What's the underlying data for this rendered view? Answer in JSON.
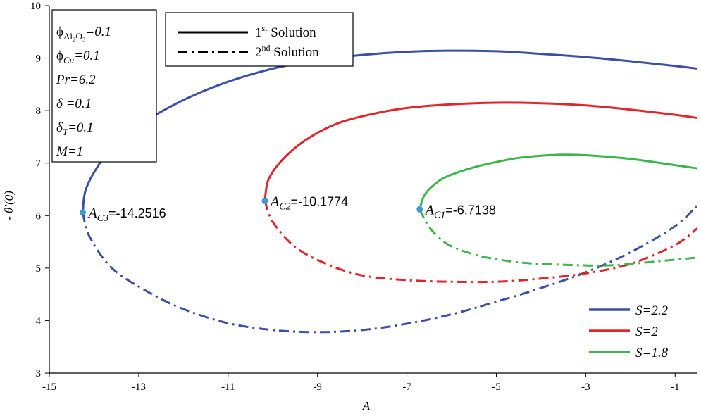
{
  "chart_data": {
    "type": "line",
    "xlabel": "A",
    "ylabel": "- θ′(0)",
    "xlim": [
      -15,
      -0.5
    ],
    "ylim": [
      3,
      10
    ],
    "xticks": [
      -15,
      -13,
      -11,
      -9,
      -7,
      -5,
      -3,
      -1
    ],
    "yticks": [
      3,
      4,
      5,
      6,
      7,
      8,
      9,
      10
    ],
    "grid": false,
    "params": [
      {
        "sym": "ϕ",
        "sub": "Al₂O₃",
        "val": "=0.1"
      },
      {
        "sym": "ϕ",
        "sub": "Cu",
        "val": "=0.1"
      },
      {
        "sym": "Pr",
        "sub": "",
        "val": "=6.2"
      },
      {
        "sym": "δ",
        "sub": "",
        "val": " =0.1"
      },
      {
        "sym": "δ",
        "sub": "T",
        "val": "=0.1"
      },
      {
        "sym": "M",
        "sub": "",
        "val": "=1"
      }
    ],
    "style_legend": {
      "first": {
        "base": "1",
        "sup": "st",
        "text": " Solution"
      },
      "second": {
        "base": "2",
        "sup": "nd",
        "text": " Solution"
      }
    },
    "series": [
      {
        "name": "S=2.2",
        "color": "#3b4fa8",
        "critical": {
          "label_main": "A",
          "label_sub": "C3",
          "label_value": "=-14.2516",
          "x": -14.2516,
          "y": 6.06
        },
        "first": [
          [
            -14.2516,
            6.06
          ],
          [
            -14.2,
            6.45
          ],
          [
            -14.0,
            6.82
          ],
          [
            -13.6,
            7.3
          ],
          [
            -13.0,
            7.72
          ],
          [
            -12.0,
            8.2
          ],
          [
            -11.0,
            8.55
          ],
          [
            -10.0,
            8.8
          ],
          [
            -9.0,
            8.96
          ],
          [
            -8.0,
            9.06
          ],
          [
            -7.0,
            9.12
          ],
          [
            -6.0,
            9.14
          ],
          [
            -5.0,
            9.13
          ],
          [
            -4.0,
            9.08
          ],
          [
            -3.0,
            9.02
          ],
          [
            -2.0,
            8.94
          ],
          [
            -1.0,
            8.85
          ],
          [
            -0.5,
            8.8
          ]
        ],
        "second": [
          [
            -14.2516,
            6.06
          ],
          [
            -14.1,
            5.6
          ],
          [
            -13.6,
            5.0
          ],
          [
            -12.8,
            4.55
          ],
          [
            -12.0,
            4.22
          ],
          [
            -11.0,
            3.95
          ],
          [
            -10.0,
            3.82
          ],
          [
            -9.0,
            3.78
          ],
          [
            -8.0,
            3.82
          ],
          [
            -7.0,
            3.94
          ],
          [
            -6.0,
            4.12
          ],
          [
            -5.0,
            4.36
          ],
          [
            -4.0,
            4.62
          ],
          [
            -3.0,
            4.92
          ],
          [
            -2.0,
            5.3
          ],
          [
            -1.0,
            5.8
          ],
          [
            -0.5,
            6.2
          ]
        ]
      },
      {
        "name": "S=2",
        "color": "#e0262b",
        "critical": {
          "label_main": "A",
          "label_sub": "C2",
          "label_value": "=-10.1774",
          "x": -10.1774,
          "y": 6.28
        },
        "first": [
          [
            -10.1774,
            6.28
          ],
          [
            -10.1,
            6.68
          ],
          [
            -9.8,
            7.05
          ],
          [
            -9.3,
            7.42
          ],
          [
            -8.6,
            7.74
          ],
          [
            -7.8,
            7.93
          ],
          [
            -7.0,
            8.05
          ],
          [
            -6.0,
            8.12
          ],
          [
            -5.0,
            8.15
          ],
          [
            -4.0,
            8.14
          ],
          [
            -3.0,
            8.1
          ],
          [
            -2.0,
            8.02
          ],
          [
            -1.0,
            7.92
          ],
          [
            -0.5,
            7.86
          ]
        ],
        "second": [
          [
            -10.1774,
            6.28
          ],
          [
            -10.0,
            5.88
          ],
          [
            -9.5,
            5.4
          ],
          [
            -8.8,
            5.08
          ],
          [
            -8.0,
            4.86
          ],
          [
            -7.0,
            4.77
          ],
          [
            -6.0,
            4.74
          ],
          [
            -5.0,
            4.74
          ],
          [
            -4.0,
            4.8
          ],
          [
            -3.0,
            4.9
          ],
          [
            -2.0,
            5.08
          ],
          [
            -1.0,
            5.44
          ],
          [
            -0.5,
            5.76
          ]
        ]
      },
      {
        "name": "S=1.8",
        "color": "#3db54a",
        "critical": {
          "label_main": "A",
          "label_sub": "C1",
          "label_value": "=-6.7138",
          "x": -6.7138,
          "y": 6.12
        },
        "first": [
          [
            -6.7138,
            6.12
          ],
          [
            -6.6,
            6.4
          ],
          [
            -6.3,
            6.65
          ],
          [
            -6.0,
            6.78
          ],
          [
            -5.5,
            6.92
          ],
          [
            -5.0,
            7.02
          ],
          [
            -4.5,
            7.1
          ],
          [
            -4.0,
            7.14
          ],
          [
            -3.5,
            7.16
          ],
          [
            -3.0,
            7.15
          ],
          [
            -2.0,
            7.08
          ],
          [
            -1.0,
            6.96
          ],
          [
            -0.5,
            6.9
          ]
        ],
        "second": [
          [
            -6.7138,
            6.12
          ],
          [
            -6.5,
            5.78
          ],
          [
            -6.1,
            5.46
          ],
          [
            -5.5,
            5.26
          ],
          [
            -5.0,
            5.17
          ],
          [
            -4.5,
            5.11
          ],
          [
            -4.0,
            5.08
          ],
          [
            -3.0,
            5.05
          ],
          [
            -2.5,
            5.05
          ],
          [
            -2.0,
            5.08
          ],
          [
            -1.0,
            5.16
          ],
          [
            -0.5,
            5.2
          ]
        ]
      }
    ]
  }
}
